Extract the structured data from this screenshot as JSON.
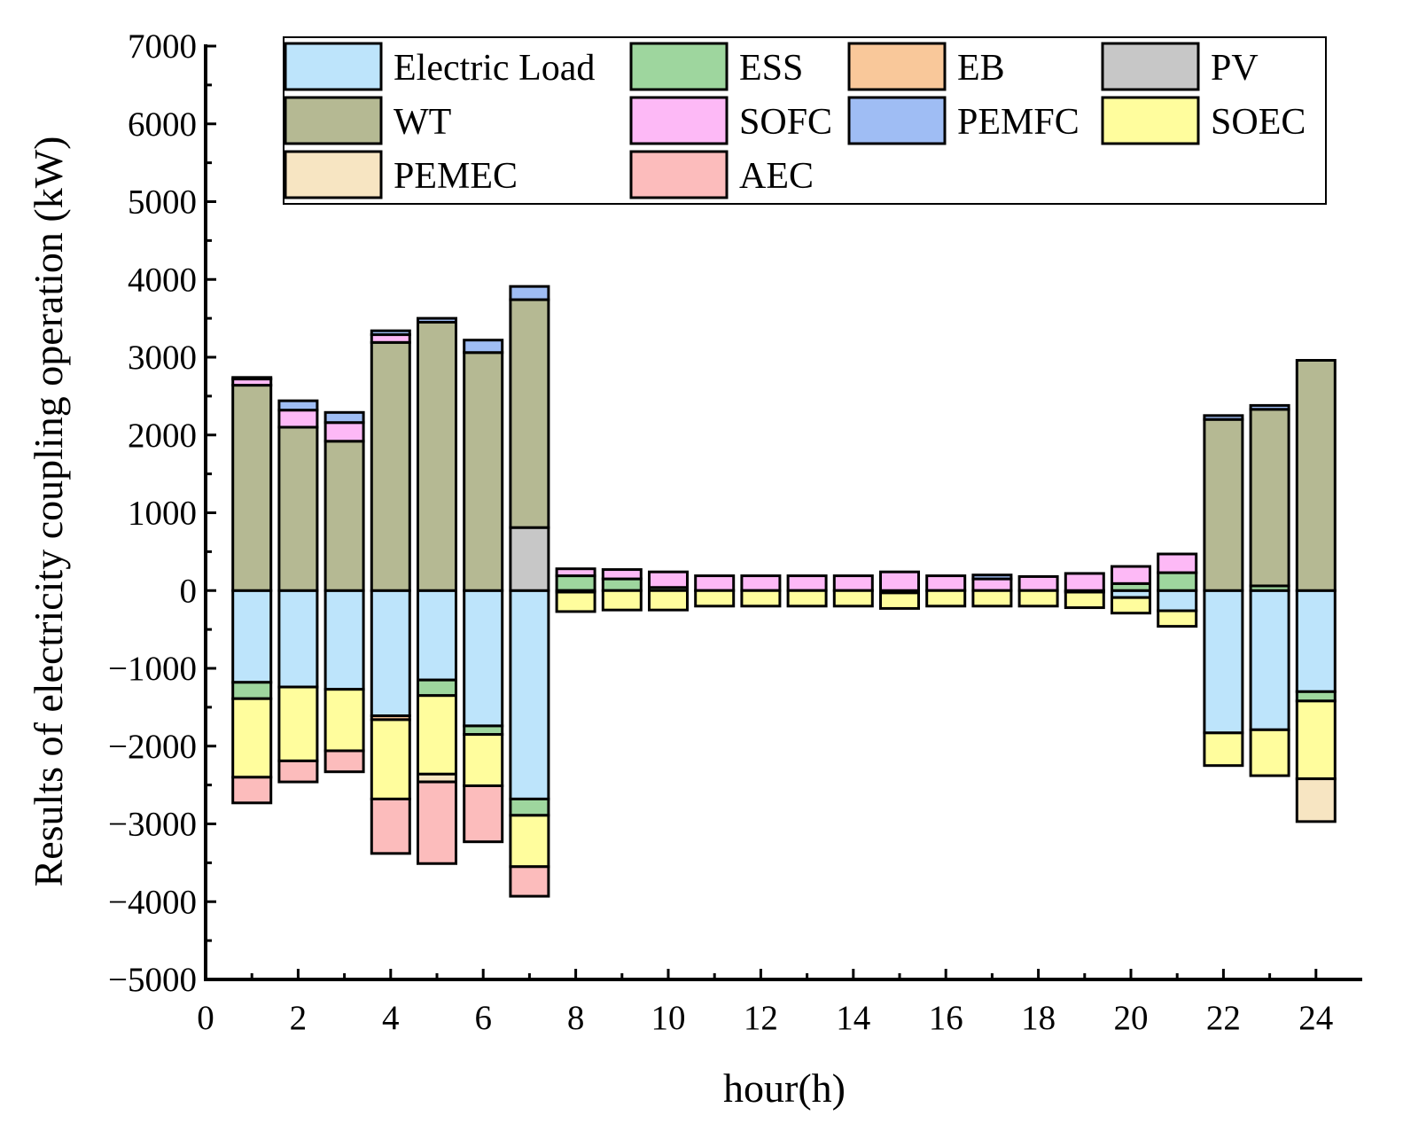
{
  "chart_data": {
    "type": "bar",
    "stacked": true,
    "title": "",
    "xlabel": "hour(h)",
    "ylabel": "Results of electricity coupling operation (kW)",
    "xlim": [
      0,
      25
    ],
    "ylim": [
      -5000,
      7000
    ],
    "xticks": [
      0,
      2,
      4,
      6,
      8,
      10,
      12,
      14,
      16,
      18,
      20,
      22,
      24
    ],
    "yticks": [
      -5000,
      -4000,
      -3000,
      -2000,
      -1000,
      0,
      1000,
      2000,
      3000,
      4000,
      5000,
      6000,
      7000
    ],
    "grid": false,
    "legend_position": "top",
    "x": [
      1,
      2,
      3,
      4,
      5,
      6,
      7,
      8,
      9,
      10,
      11,
      12,
      13,
      14,
      15,
      16,
      17,
      18,
      19,
      20,
      21,
      22,
      23,
      24
    ],
    "series": [
      {
        "name": "Electric Load",
        "color": "#bde4fb",
        "values": [
          -1180,
          -1240,
          -1270,
          -1610,
          -1150,
          -1740,
          -2680,
          0,
          0,
          0,
          0,
          0,
          0,
          0,
          -30,
          0,
          0,
          0,
          0,
          -90,
          -260,
          -1830,
          -1790,
          -1300
        ]
      },
      {
        "name": "ESS",
        "color": "#9ed69e",
        "values": [
          -210,
          0,
          0,
          0,
          -200,
          -110,
          -210,
          190,
          150,
          40,
          0,
          0,
          0,
          0,
          0,
          0,
          0,
          0,
          0,
          90,
          230,
          0,
          60,
          -120
        ]
      },
      {
        "name": "EB",
        "color": "#f9c89a",
        "values": [
          0,
          0,
          0,
          -50,
          0,
          0,
          0,
          -20,
          0,
          0,
          0,
          0,
          0,
          0,
          0,
          0,
          0,
          0,
          -20,
          0,
          0,
          0,
          0,
          0
        ]
      },
      {
        "name": "PV",
        "color": "#c7c7c7",
        "values": [
          0,
          0,
          0,
          0,
          0,
          0,
          810,
          0,
          0,
          0,
          0,
          0,
          0,
          0,
          0,
          0,
          0,
          0,
          0,
          0,
          0,
          0,
          0,
          0
        ]
      },
      {
        "name": "WT",
        "color": "#b5b993",
        "values": [
          2640,
          2100,
          1920,
          3190,
          3450,
          3060,
          2930,
          0,
          0,
          0,
          0,
          0,
          0,
          0,
          0,
          0,
          0,
          0,
          0,
          0,
          0,
          2200,
          2270,
          2960
        ]
      },
      {
        "name": "SOFC",
        "color": "#fdb9f6",
        "values": [
          80,
          220,
          240,
          100,
          0,
          0,
          0,
          90,
          120,
          200,
          190,
          190,
          190,
          190,
          240,
          190,
          150,
          180,
          220,
          220,
          240,
          0,
          0,
          0
        ]
      },
      {
        "name": "PEMFC",
        "color": "#9fbdf4",
        "values": [
          20,
          120,
          130,
          50,
          50,
          160,
          170,
          0,
          0,
          0,
          0,
          0,
          0,
          0,
          0,
          0,
          50,
          0,
          0,
          0,
          0,
          50,
          50,
          0
        ]
      },
      {
        "name": "SOEC",
        "color": "#fffd9d",
        "values": [
          -1010,
          -950,
          -790,
          -1020,
          -1010,
          -660,
          -660,
          -250,
          -250,
          -250,
          -200,
          -200,
          -200,
          -200,
          -200,
          -200,
          -200,
          -200,
          -200,
          -200,
          -200,
          -420,
          -590,
          -1000
        ]
      },
      {
        "name": "PEMEC",
        "color": "#f7e5c2",
        "values": [
          0,
          0,
          0,
          0,
          -100,
          0,
          0,
          0,
          0,
          0,
          0,
          0,
          0,
          0,
          0,
          0,
          0,
          0,
          0,
          0,
          0,
          0,
          0,
          -550
        ]
      },
      {
        "name": "AEC",
        "color": "#fcbcbc",
        "values": [
          -330,
          -270,
          -270,
          -700,
          -1050,
          -720,
          -380,
          0,
          0,
          0,
          0,
          0,
          0,
          0,
          0,
          0,
          0,
          0,
          0,
          0,
          0,
          0,
          0,
          0
        ]
      }
    ]
  }
}
